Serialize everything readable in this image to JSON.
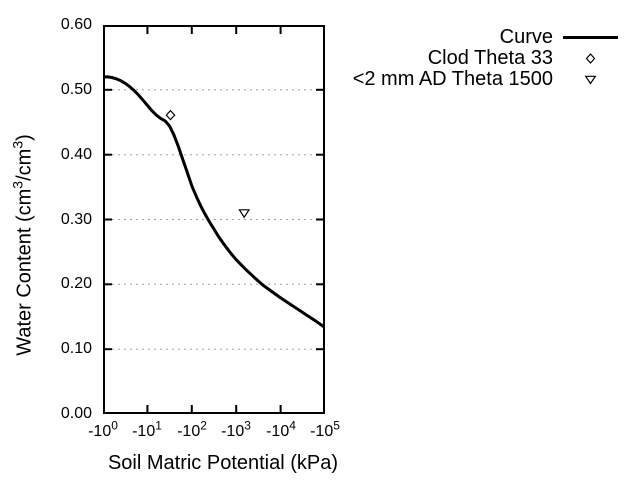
{
  "chart_data": {
    "type": "line",
    "title": "",
    "xlabel": "Soil Matric Potential (kPa)",
    "ylabel": "Water Content (cm3/cm3)",
    "ylabel_parts": {
      "pre": "Water Content (cm",
      "sup1": "3",
      "mid": "/cm",
      "sup2": "3",
      "post": ")"
    },
    "x_axis": {
      "scale": "negative log10 (kPa)",
      "tick_base": "-10",
      "tick_exponents": [
        "0",
        "1",
        "2",
        "3",
        "4",
        "5"
      ],
      "range_decades": [
        0,
        5
      ]
    },
    "y_axis": {
      "tick_labels": [
        "0.60",
        "0.50",
        "0.40",
        "0.30",
        "0.20",
        "0.10",
        "0.00"
      ],
      "tick_values": [
        0.6,
        0.5,
        0.4,
        0.3,
        0.2,
        0.1,
        0.0
      ],
      "range": [
        0.0,
        0.6
      ],
      "gridlines": [
        0.5,
        0.4,
        0.3,
        0.2,
        0.1
      ],
      "grid_style": "horizontal dotted"
    },
    "legend": {
      "position": "top-right outside plot",
      "items": [
        {
          "label": "Curve",
          "marker": "line"
        },
        {
          "label": "Clod Theta 33",
          "marker": "open-diamond"
        },
        {
          "label": "<2 mm AD Theta 1500",
          "marker": "open-triangle-down"
        }
      ]
    },
    "series": [
      {
        "name": "Curve",
        "type": "line",
        "points_log10kPa_theta": [
          [
            0.0,
            0.52
          ],
          [
            0.1,
            0.52
          ],
          [
            0.2,
            0.519
          ],
          [
            0.3,
            0.517
          ],
          [
            0.4,
            0.514
          ],
          [
            0.5,
            0.51
          ],
          [
            0.6,
            0.505
          ],
          [
            0.7,
            0.499
          ],
          [
            0.8,
            0.492
          ],
          [
            0.9,
            0.484
          ],
          [
            1.0,
            0.476
          ],
          [
            1.1,
            0.468
          ],
          [
            1.2,
            0.461
          ],
          [
            1.3,
            0.456
          ],
          [
            1.4,
            0.452
          ],
          [
            1.5,
            0.444
          ],
          [
            1.6,
            0.43
          ],
          [
            1.7,
            0.412
          ],
          [
            1.8,
            0.392
          ],
          [
            1.9,
            0.372
          ],
          [
            2.0,
            0.352
          ],
          [
            2.1,
            0.336
          ],
          [
            2.2,
            0.321
          ],
          [
            2.3,
            0.308
          ],
          [
            2.4,
            0.296
          ],
          [
            2.5,
            0.285
          ],
          [
            2.6,
            0.274
          ],
          [
            2.7,
            0.264
          ],
          [
            2.8,
            0.255
          ],
          [
            2.9,
            0.246
          ],
          [
            3.0,
            0.238
          ],
          [
            3.2,
            0.224
          ],
          [
            3.4,
            0.211
          ],
          [
            3.6,
            0.199
          ],
          [
            3.8,
            0.189
          ],
          [
            4.0,
            0.179
          ],
          [
            4.2,
            0.17
          ],
          [
            4.4,
            0.161
          ],
          [
            4.6,
            0.152
          ],
          [
            4.8,
            0.143
          ],
          [
            5.0,
            0.135
          ]
        ]
      },
      {
        "name": "Clod Theta 33",
        "type": "scatter",
        "marker": "open-diamond",
        "points_log10kPa_theta": [
          [
            1.52,
            0.461
          ]
        ]
      },
      {
        "name": "<2 mm AD Theta 1500",
        "type": "scatter",
        "marker": "open-triangle-down",
        "points_log10kPa_theta": [
          [
            3.18,
            0.31
          ]
        ]
      }
    ],
    "colors": {
      "curve": "#000000",
      "grid": "#a0a0a0",
      "background": "#ffffff",
      "text": "#000000"
    }
  }
}
